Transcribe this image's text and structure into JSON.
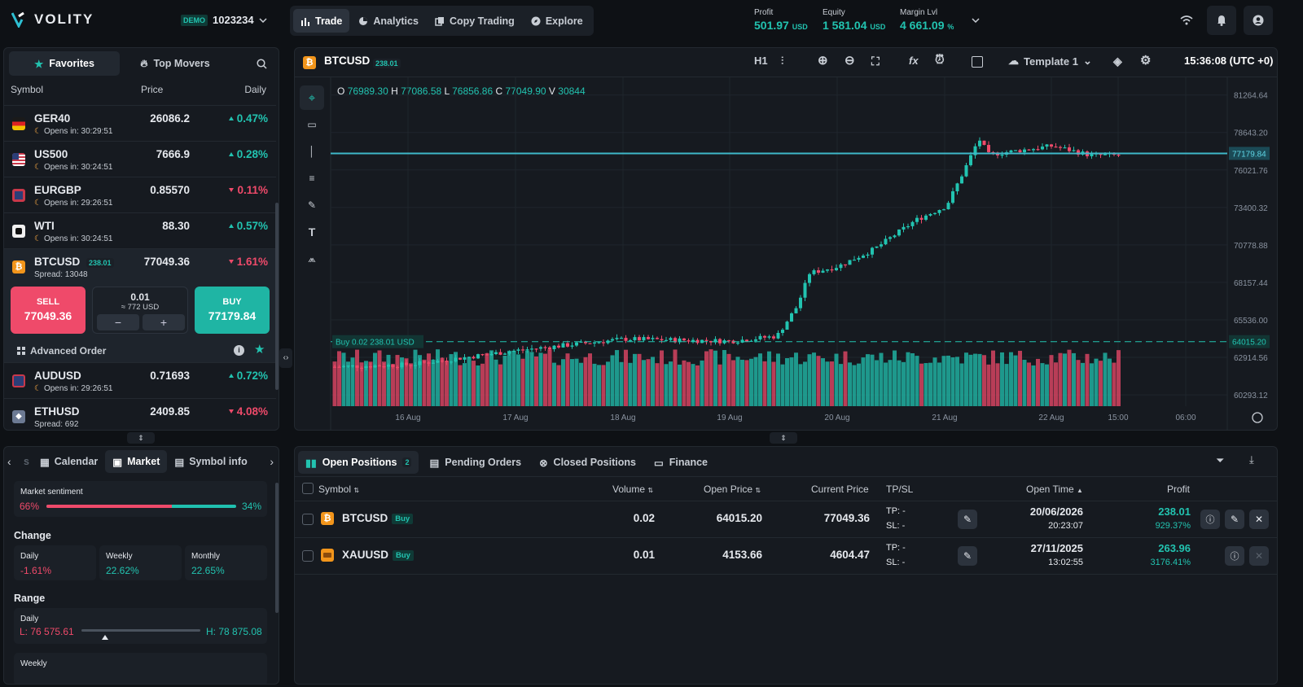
{
  "app": {
    "brand": "VOLITY",
    "demo_tag": "DEMO",
    "account": "1023234"
  },
  "nav": [
    {
      "label": "Trade"
    },
    {
      "label": "Analytics"
    },
    {
      "label": "Copy Trading"
    },
    {
      "label": "Explore"
    }
  ],
  "stats": {
    "profit_label": "Profit",
    "profit": "501.97",
    "equity_label": "Equity",
    "equity": "1 581.04",
    "margin_label": "Margin Lvl",
    "margin": "4 661.09",
    "usd": "USD",
    "pct": "%"
  },
  "watchlist": {
    "tabs": {
      "favorites": "Favorites",
      "top_movers": "Top Movers"
    },
    "cols": {
      "symbol": "Symbol",
      "price": "Price",
      "daily": "Daily"
    },
    "rows": [
      {
        "symbol": "GER40",
        "sub": "Opens in: 30:29:51",
        "price": "26086.2",
        "change": "0.47%",
        "dir": "up"
      },
      {
        "symbol": "US500",
        "sub": "Opens in: 30:24:51",
        "price": "7666.9",
        "change": "0.28%",
        "dir": "up"
      },
      {
        "symbol": "EURGBP",
        "sub": "Opens in: 29:26:51",
        "price": "0.85570",
        "change": "0.11%",
        "dir": "down"
      },
      {
        "symbol": "WTI",
        "sub": "Opens in: 30:24:51",
        "price": "88.30",
        "change": "0.57%",
        "dir": "up"
      }
    ],
    "selected": {
      "symbol": "BTCUSD",
      "badge": "238.01",
      "sub": "Spread: 13048",
      "price": "77049.36",
      "change": "1.61%",
      "sell_label": "SELL",
      "sell_price": "77049.36",
      "buy_label": "BUY",
      "buy_price": "77179.84",
      "lot": "0.01",
      "approx": "≈ 772 USD",
      "minus": "−",
      "plus": "+",
      "advanced": "Advanced Order"
    },
    "rows2": [
      {
        "symbol": "AUDUSD",
        "sub": "Opens in: 29:26:51",
        "price": "0.71693",
        "change": "0.72%",
        "dir": "up"
      },
      {
        "symbol": "ETHUSD",
        "sub": "Spread: 692",
        "price": "2409.85",
        "change": "4.08%",
        "dir": "down"
      }
    ]
  },
  "info_panel": {
    "tabs": {
      "partial": "s",
      "calendar": "Calendar",
      "market": "Market",
      "symbol_info": "Symbol info"
    },
    "sentiment": {
      "label": "Market sentiment",
      "sell": "66%",
      "buy": "34%",
      "sell_fraction": 0.66
    },
    "change": {
      "title": "Change",
      "daily_label": "Daily",
      "daily": "-1.61%",
      "weekly_label": "Weekly",
      "weekly": "22.62%",
      "monthly_label": "Monthly",
      "monthly": "22.65%"
    },
    "range": {
      "title": "Range",
      "daily_label": "Daily",
      "low": "L: 76 575.61",
      "high": "H: 78 875.08",
      "weekly_label": "Weekly",
      "marker_fraction": 0.2
    }
  },
  "chart": {
    "symbol": "BTCUSD",
    "badge": "238.01",
    "timeframe": "H1",
    "template": "Template 1",
    "clock": "15:36:08 (UTC +0)",
    "ohlc": {
      "o_label": "O",
      "o": "76989.30",
      "h_label": "H",
      "h": "77086.58",
      "l_label": "L",
      "l": "76856.86",
      "c_label": "C",
      "c": "77049.90",
      "v_label": "V",
      "v": "30844"
    },
    "position_line": {
      "label": "Buy 0.02",
      "value": "238.01 USD",
      "price_tag": "64015.20"
    },
    "current_price_tag": "77179.84",
    "price_axis": [
      "81264.64",
      "78643.20",
      "76021.76",
      "73400.32",
      "70778.88",
      "68157.44",
      "65536.00",
      "62914.56",
      "60293.12"
    ],
    "time_axis": [
      "16 Aug",
      "17 Aug",
      "18 Aug",
      "19 Aug",
      "20 Aug",
      "21 Aug",
      "22 Aug",
      "15:00",
      "06:00"
    ],
    "colors": {
      "up": "#22c3b0",
      "down": "#ef4a6a",
      "price_line": "#3fb8c9"
    }
  },
  "chart_data": {
    "type": "candlestick",
    "x": [
      "16 Aug",
      "17 Aug",
      "18 Aug",
      "19 Aug",
      "20 Aug",
      "21 Aug",
      "22 Aug"
    ],
    "close": [
      62400,
      63500,
      64200,
      64000,
      69500,
      72600,
      77000
    ],
    "ylim": [
      59500,
      82500
    ],
    "last": {
      "o": 76989.3,
      "h": 77086.58,
      "l": 76856.86,
      "c": 77049.9,
      "v": 30844
    }
  },
  "positions": {
    "tabs": {
      "open": "Open Positions",
      "open_count": "2",
      "pending": "Pending Orders",
      "closed": "Closed Positions",
      "finance": "Finance"
    },
    "cols": {
      "symbol": "Symbol",
      "volume": "Volume",
      "open_price": "Open Price",
      "current_price": "Current Price",
      "tpsl": "TP/SL",
      "open_time": "Open Time",
      "profit": "Profit"
    },
    "rows": [
      {
        "symbol": "BTCUSD",
        "side": "Buy",
        "volume": "0.02",
        "open_price": "64015.20",
        "current_price": "77049.36",
        "tp": "TP: -",
        "sl": "SL: -",
        "date": "20/06/2026",
        "time": "20:23:07",
        "profit": "238.01",
        "profit_pct": "929.37%"
      },
      {
        "symbol": "XAUUSD",
        "side": "Buy",
        "volume": "0.01",
        "open_price": "4153.66",
        "current_price": "4604.47",
        "tp": "TP: -",
        "sl": "SL: -",
        "date": "27/11/2025",
        "time": "13:02:55",
        "profit": "263.96",
        "profit_pct": "3176.41%"
      }
    ]
  }
}
